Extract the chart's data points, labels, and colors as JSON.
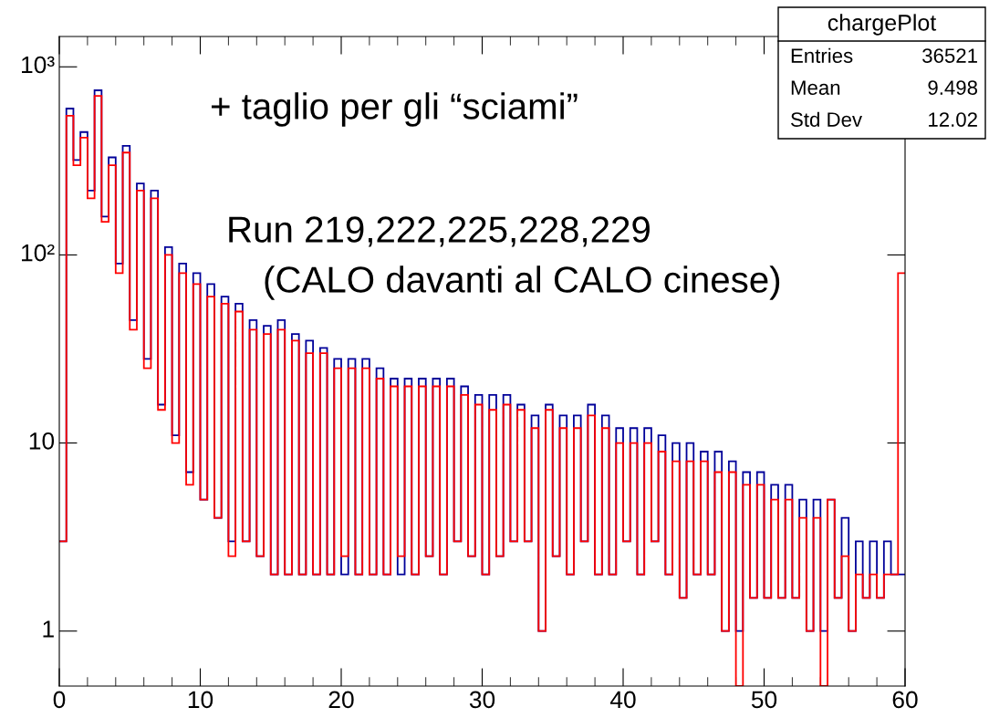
{
  "chart_data": {
    "type": "histogram",
    "bins": [
      0,
      0.5,
      1,
      1.5,
      2,
      2.5,
      3,
      3.5,
      4,
      4.5,
      5,
      5.5,
      6,
      6.5,
      7,
      7.5,
      8,
      8.5,
      9,
      9.5,
      10,
      10.5,
      11,
      11.5,
      12,
      12.5,
      13,
      13.5,
      14,
      14.5,
      15,
      15.5,
      16,
      16.5,
      17,
      17.5,
      18,
      18.5,
      19,
      19.5,
      20,
      20.5,
      21,
      21.5,
      22,
      22.5,
      23,
      23.5,
      24,
      24.5,
      25,
      25.5,
      26,
      26.5,
      27,
      27.5,
      28,
      28.5,
      29,
      29.5,
      30,
      30.5,
      31,
      31.5,
      32,
      32.5,
      33,
      33.5,
      34,
      34.5,
      35,
      35.5,
      36,
      36.5,
      37,
      37.5,
      38,
      38.5,
      39,
      39.5,
      40,
      40.5,
      41,
      41.5,
      42,
      42.5,
      43,
      43.5,
      44,
      44.5,
      45,
      45.5,
      46,
      46.5,
      47,
      47.5,
      48,
      48.5,
      49,
      49.5,
      50,
      50.5,
      51,
      51.5,
      52,
      52.5,
      53,
      53.5,
      54,
      54.5,
      55,
      55.5,
      56,
      56.5,
      57,
      57.5,
      58,
      58.5,
      59,
      59.5,
      60
    ],
    "series": [
      {
        "color": "#000099",
        "values": [
          3,
          600,
          320,
          450,
          220,
          750,
          160,
          330,
          90,
          380,
          45,
          240,
          28,
          220,
          16,
          110,
          11,
          90,
          7,
          80,
          5,
          70,
          4,
          60,
          3,
          55,
          3,
          45,
          2.5,
          42,
          2,
          45,
          2,
          38,
          2,
          35,
          2,
          32,
          2,
          28,
          2,
          28,
          2,
          28,
          2,
          25,
          2,
          22,
          2,
          22,
          2,
          22,
          2.5,
          22,
          2,
          22,
          3,
          20,
          2.5,
          18,
          2,
          18,
          2.5,
          18,
          3,
          16,
          3,
          14,
          1,
          16,
          2.5,
          14,
          2,
          14,
          3,
          16,
          2,
          14,
          2,
          12,
          3,
          12,
          2,
          12,
          3,
          11,
          2,
          10,
          1.5,
          10,
          2,
          9,
          2,
          9,
          1,
          8,
          1,
          7,
          1.5,
          7,
          1.5,
          6,
          1.5,
          6,
          1.5,
          5,
          1,
          5,
          1,
          5,
          1.5,
          4,
          1,
          3,
          1.5,
          3,
          1.5,
          3,
          2,
          2
        ]
      },
      {
        "color": "#ff0000",
        "values": [
          3,
          550,
          300,
          420,
          200,
          700,
          150,
          300,
          80,
          350,
          40,
          220,
          25,
          200,
          15,
          100,
          10,
          80,
          6,
          70,
          5,
          60,
          4,
          55,
          2.5,
          50,
          3,
          40,
          2.5,
          38,
          2,
          40,
          2,
          35,
          2,
          30,
          2,
          30,
          2,
          25,
          2.5,
          25,
          2,
          25,
          2,
          22,
          2,
          20,
          2.5,
          20,
          2,
          20,
          2.5,
          20,
          2,
          20,
          3,
          18,
          2.5,
          16,
          2,
          15,
          2.5,
          16,
          3,
          15,
          3,
          12,
          1,
          15,
          2.5,
          12,
          2,
          12,
          3,
          14,
          2,
          12,
          2,
          10,
          3,
          10,
          2,
          10,
          3,
          9,
          2,
          8,
          1.5,
          8,
          2,
          8,
          2,
          7,
          1,
          7,
          null,
          6,
          1.5,
          6,
          1.5,
          5,
          1.5,
          5,
          1.5,
          4,
          1,
          4,
          null,
          5,
          1.5,
          2.5,
          1,
          2,
          1.5,
          2,
          1.5,
          2,
          2,
          80
        ]
      }
    ],
    "log": "y",
    "xlim": [
      0,
      60
    ],
    "xticks": [
      0,
      10,
      20,
      30,
      40,
      50,
      60
    ],
    "ylim": [
      0.51,
      1450
    ],
    "yticks": [
      1,
      10,
      {
        "value": 100,
        "label": "10²"
      },
      {
        "value": 1000,
        "label": "10³"
      }
    ],
    "grid": false,
    "annotations": [
      "+ taglio per gli “sciami”",
      "Run 219,222,225,228,229",
      "(CALO davanti al CALO cinese)",
      "chargePlot",
      "Entries",
      "36521",
      "Mean",
      "9.498",
      "Std Dev",
      "12.02"
    ]
  }
}
